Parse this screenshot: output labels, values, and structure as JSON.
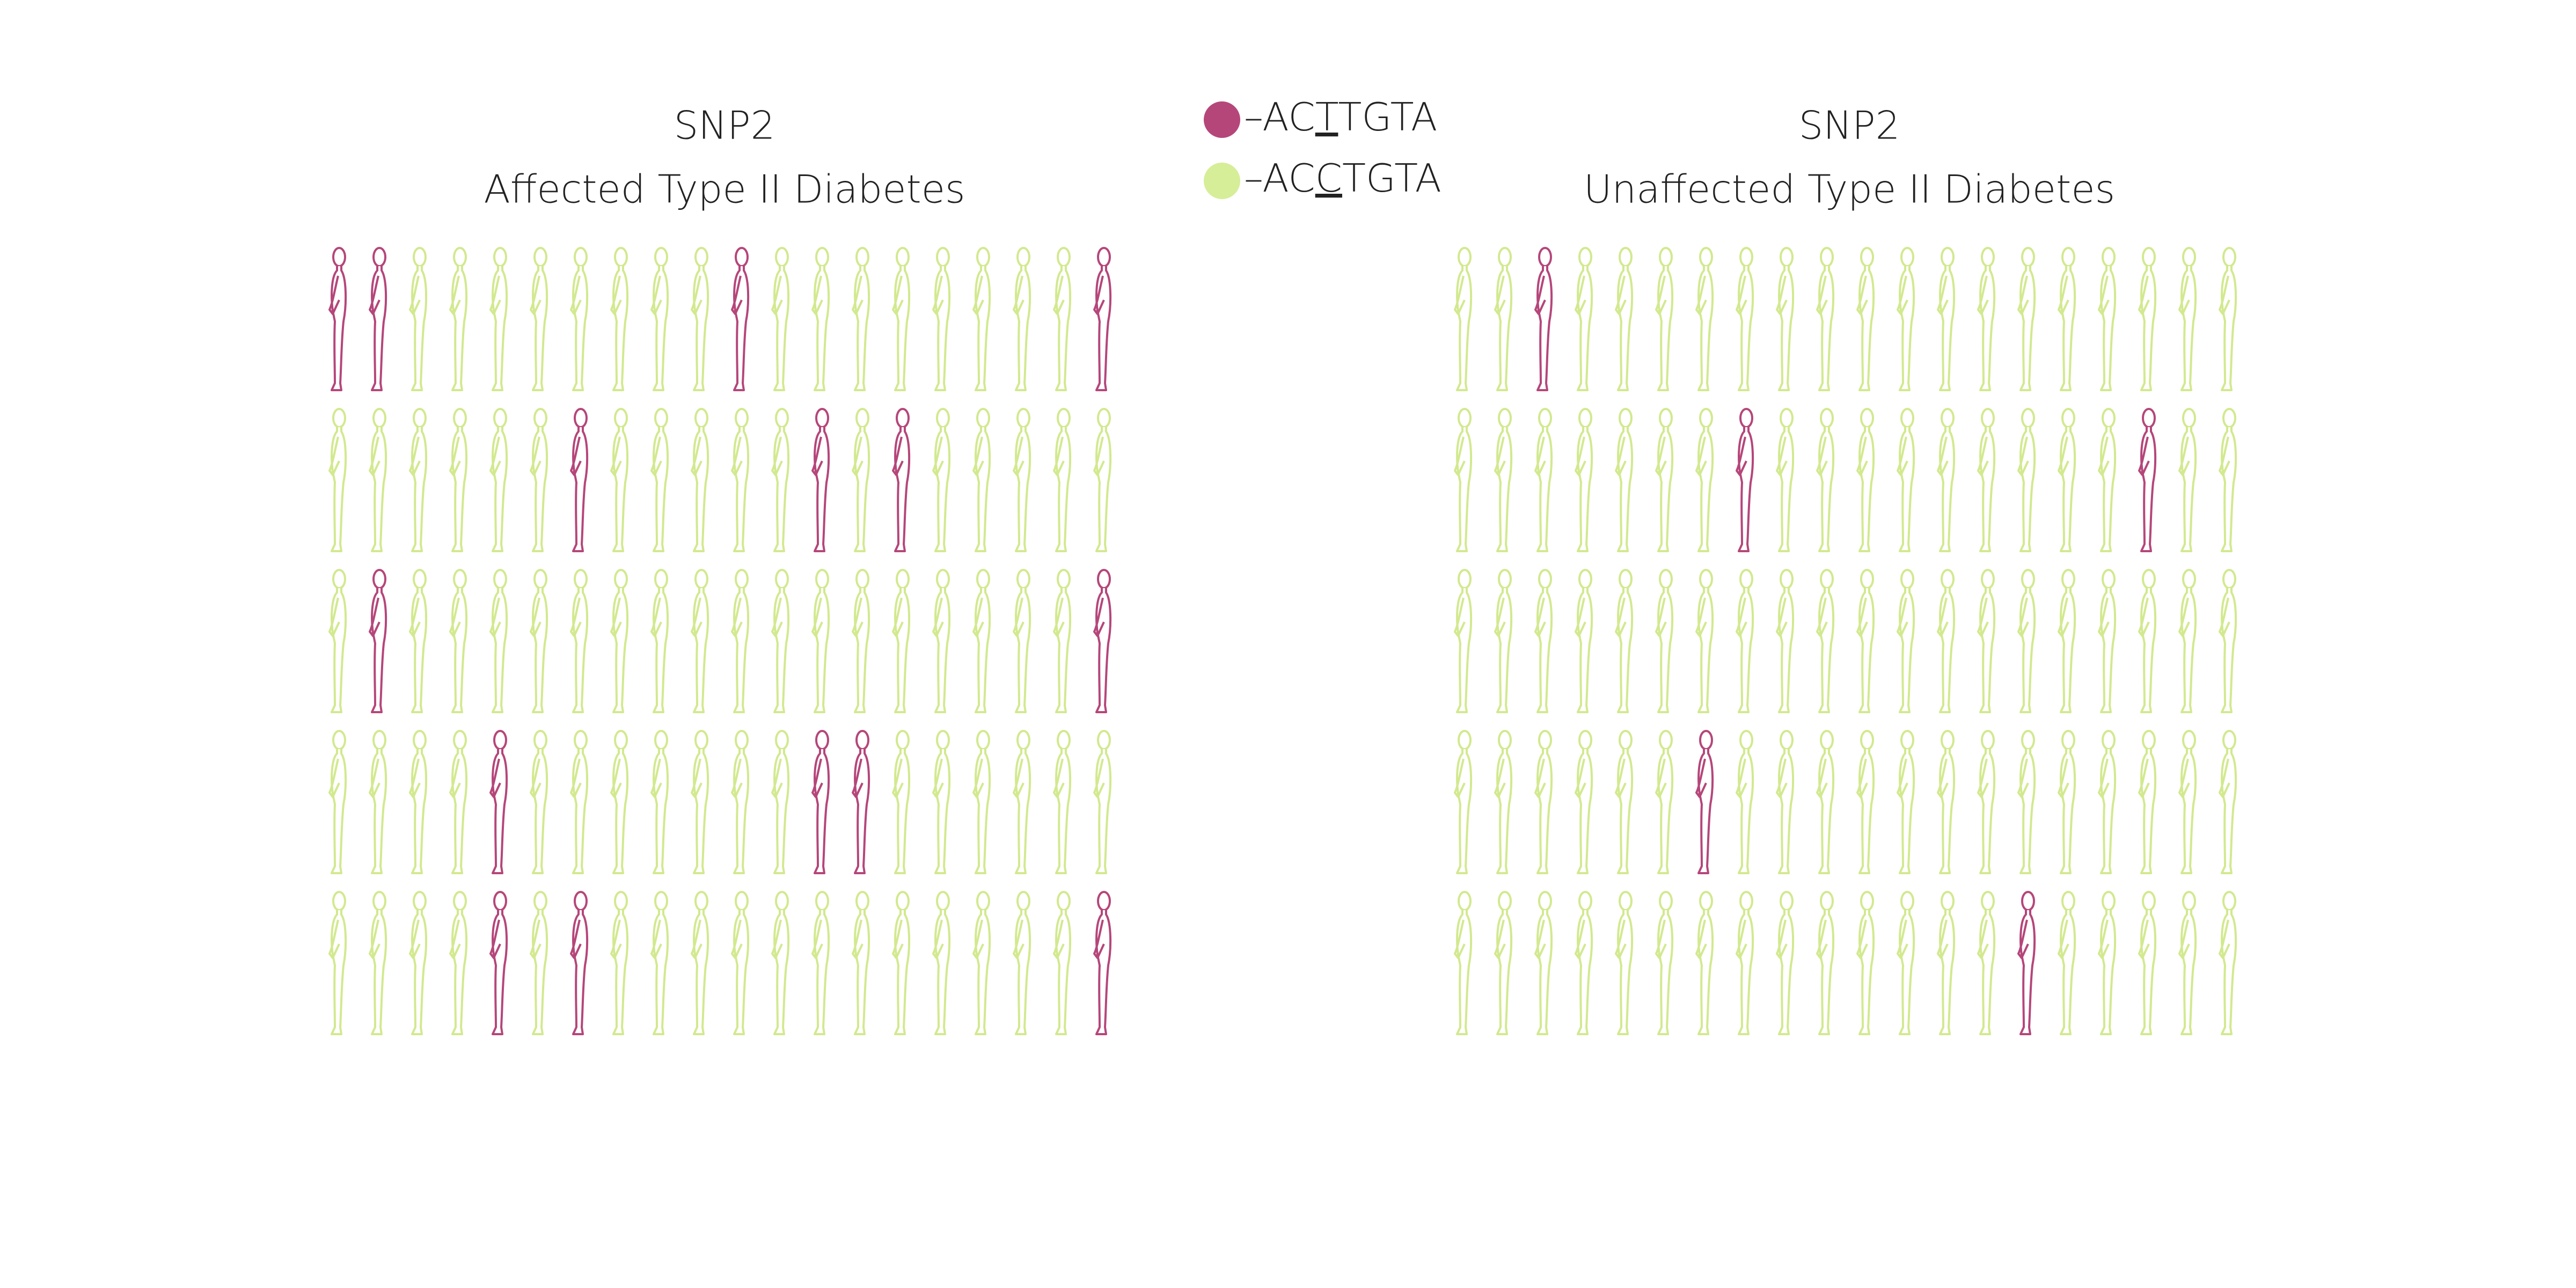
{
  "legend": [
    {
      "name": "–ACTTGTA",
      "color": "#b5467a",
      "fill": "#b5467a",
      "underline": 3
    },
    {
      "name": "–ACCTGTA",
      "color": "#d2e98f",
      "fill": "#d6ee98",
      "underline": 3
    }
  ],
  "chart_data": [
    {
      "type": "pictogram",
      "title": "SNP2",
      "subtitle": "Affected Type II Diabetes",
      "grid": [
        [
          0,
          0,
          1,
          1,
          1,
          1,
          1,
          1,
          1,
          1,
          0,
          1,
          1,
          1,
          1,
          1,
          1,
          1,
          1,
          0
        ],
        [
          1,
          1,
          1,
          1,
          1,
          1,
          0,
          1,
          1,
          1,
          1,
          1,
          0,
          1,
          0,
          1,
          1,
          1,
          1,
          1
        ],
        [
          1,
          0,
          1,
          1,
          1,
          1,
          1,
          1,
          1,
          1,
          1,
          1,
          1,
          1,
          1,
          1,
          1,
          1,
          1,
          0
        ],
        [
          1,
          1,
          1,
          1,
          0,
          1,
          1,
          1,
          1,
          1,
          1,
          1,
          0,
          0,
          1,
          1,
          1,
          1,
          1,
          1
        ],
        [
          1,
          1,
          1,
          1,
          0,
          1,
          0,
          1,
          1,
          1,
          1,
          1,
          1,
          1,
          1,
          1,
          1,
          1,
          1,
          0
        ]
      ]
    },
    {
      "type": "pictogram",
      "title": "SNP2",
      "subtitle": "Unaffected Type II Diabetes",
      "grid": [
        [
          1,
          1,
          0,
          1,
          1,
          1,
          1,
          1,
          1,
          1,
          1,
          1,
          1,
          1,
          1,
          1,
          1,
          1,
          1,
          1
        ],
        [
          1,
          1,
          1,
          1,
          1,
          1,
          1,
          0,
          1,
          1,
          1,
          1,
          1,
          1,
          1,
          1,
          1,
          0,
          1,
          1
        ],
        [
          1,
          1,
          1,
          1,
          1,
          1,
          1,
          1,
          1,
          1,
          1,
          1,
          1,
          1,
          1,
          1,
          1,
          1,
          1,
          1
        ],
        [
          1,
          1,
          1,
          1,
          1,
          1,
          0,
          1,
          1,
          1,
          1,
          1,
          1,
          1,
          1,
          1,
          1,
          1,
          1,
          1
        ],
        [
          1,
          1,
          1,
          1,
          1,
          1,
          1,
          1,
          1,
          1,
          1,
          1,
          1,
          1,
          0,
          1,
          1,
          1,
          1,
          1
        ]
      ]
    }
  ]
}
